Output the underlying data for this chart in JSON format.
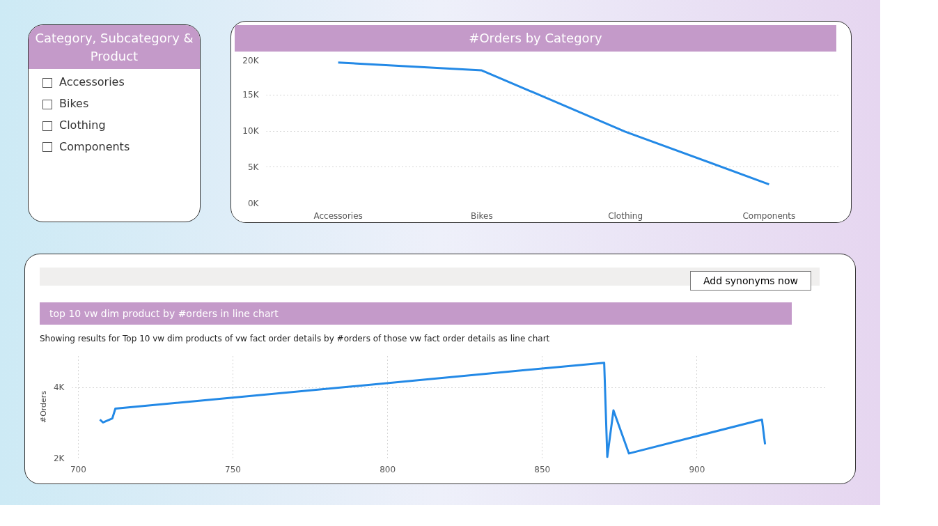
{
  "chart_data": [
    {
      "type": "other",
      "title": "Category, Subcategory & Product",
      "annotations": [
        "Accessories",
        "Bikes",
        "Clothing",
        "Components"
      ]
    },
    {
      "type": "line",
      "title": "#Orders by Category",
      "categories": [
        "Accessories",
        "Bikes",
        "Clothing",
        "Components"
      ],
      "series": [
        {
          "color": "#2389e6",
          "values": [
            19500,
            18400,
            9900,
            2600
          ]
        }
      ],
      "ylim": [
        0,
        20000
      ],
      "yticks": [
        {
          "value": 0,
          "label": "0K"
        },
        {
          "value": 5000,
          "label": "5K"
        },
        {
          "value": 10000,
          "label": "10K"
        },
        {
          "value": 15000,
          "label": "15K"
        },
        {
          "value": 20000,
          "label": "20K"
        }
      ],
      "grid": "y",
      "marker": "none",
      "line_style": "solid"
    },
    {
      "type": "line",
      "title": "top 10 vw dim product by #orders in line chart",
      "subtitle": "Showing results for Top 10 vw dim products of vw fact order details by #orders of those vw fact order details as line chart",
      "annotations": [
        "Add synonyms now"
      ],
      "ylabel": "#Orders",
      "x": [
        707,
        708,
        711,
        712,
        870,
        871,
        873,
        878,
        921,
        922
      ],
      "series": [
        {
          "color": "#2389e6",
          "values": [
            3090,
            3010,
            3120,
            3400,
            4700,
            2030,
            3350,
            2130,
            3090,
            2390
          ]
        }
      ],
      "xlim": [
        698,
        942
      ],
      "xticks": [
        700,
        750,
        800,
        850,
        900
      ],
      "ylim": [
        2000,
        4900
      ],
      "yticks": [
        {
          "value": 2000,
          "label": "2K"
        },
        {
          "value": 4000,
          "label": "4K"
        }
      ],
      "grid": true,
      "marker": "none",
      "line_style": "solid"
    }
  ]
}
